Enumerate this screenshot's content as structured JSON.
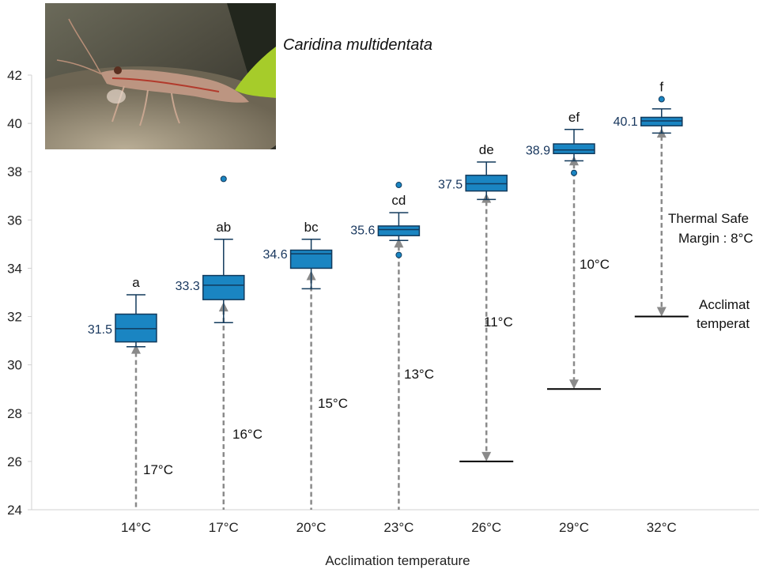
{
  "chart_data": {
    "type": "boxplot",
    "title": "Caridina multidentata",
    "xlabel": "Acclimation temperature",
    "ylabel": "",
    "ylim": [
      24,
      42
    ],
    "yticks": [
      "24",
      "26",
      "28",
      "30",
      "32",
      "34",
      "36",
      "38",
      "40",
      "42"
    ],
    "grid": false,
    "colors": {
      "box": "#1a85c2",
      "box_edge": "#123a5c",
      "value_label": "#17365d",
      "arrow": "#8a8a8a"
    },
    "categories": [
      "14°C",
      "17°C",
      "20°C",
      "23°C",
      "26°C",
      "29°C",
      "32°C"
    ],
    "boxes": [
      {
        "category": "14°C",
        "median": 31.5,
        "q1": 30.95,
        "q3": 32.1,
        "whisker_low": 30.75,
        "whisker_high": 32.9,
        "outliers": [],
        "median_label": "31.5",
        "group_letter": "a",
        "acclimation": 14,
        "margin_label": "17°C"
      },
      {
        "category": "17°C",
        "median": 33.3,
        "q1": 32.7,
        "q3": 33.7,
        "whisker_low": 31.75,
        "whisker_high": 35.2,
        "outliers": [
          37.7
        ],
        "median_label": "33.3",
        "group_letter": "ab",
        "acclimation": 17,
        "margin_label": "16°C"
      },
      {
        "category": "20°C",
        "median": 34.6,
        "q1": 34.0,
        "q3": 34.75,
        "whisker_low": 33.15,
        "whisker_high": 35.2,
        "outliers": [],
        "median_label": "34.6",
        "group_letter": "bc",
        "acclimation": 20,
        "margin_label": "15°C"
      },
      {
        "category": "23°C",
        "median": 35.6,
        "q1": 35.35,
        "q3": 35.75,
        "whisker_low": 35.15,
        "whisker_high": 36.3,
        "outliers": [
          37.45,
          34.55
        ],
        "median_label": "35.6",
        "group_letter": "cd",
        "acclimation": 23,
        "margin_label": "13°C"
      },
      {
        "category": "26°C",
        "median": 37.5,
        "q1": 37.2,
        "q3": 37.85,
        "whisker_low": 36.85,
        "whisker_high": 38.4,
        "outliers": [],
        "median_label": "37.5",
        "group_letter": "de",
        "acclimation": 26,
        "margin_label": "11°C"
      },
      {
        "category": "29°C",
        "median": 38.9,
        "q1": 38.75,
        "q3": 39.15,
        "whisker_low": 38.45,
        "whisker_high": 39.75,
        "outliers": [
          37.95
        ],
        "median_label": "38.9",
        "group_letter": "ef",
        "acclimation": 29,
        "margin_label": "10°C"
      },
      {
        "category": "32°C",
        "median": 40.1,
        "q1": 39.9,
        "q3": 40.25,
        "whisker_low": 39.6,
        "whisker_high": 40.6,
        "outliers": [
          41.0
        ],
        "median_label": "40.1",
        "group_letter": "f",
        "acclimation": 32,
        "margin_label": "8°C"
      }
    ],
    "annotations": {
      "thermal_safety_margin": [
        "Thermal Safe",
        "Margin : 8°C"
      ],
      "acclimation_temperature": [
        "Acclimat",
        "temperat"
      ]
    }
  },
  "photo": {
    "subject": "shrimp-photo"
  }
}
